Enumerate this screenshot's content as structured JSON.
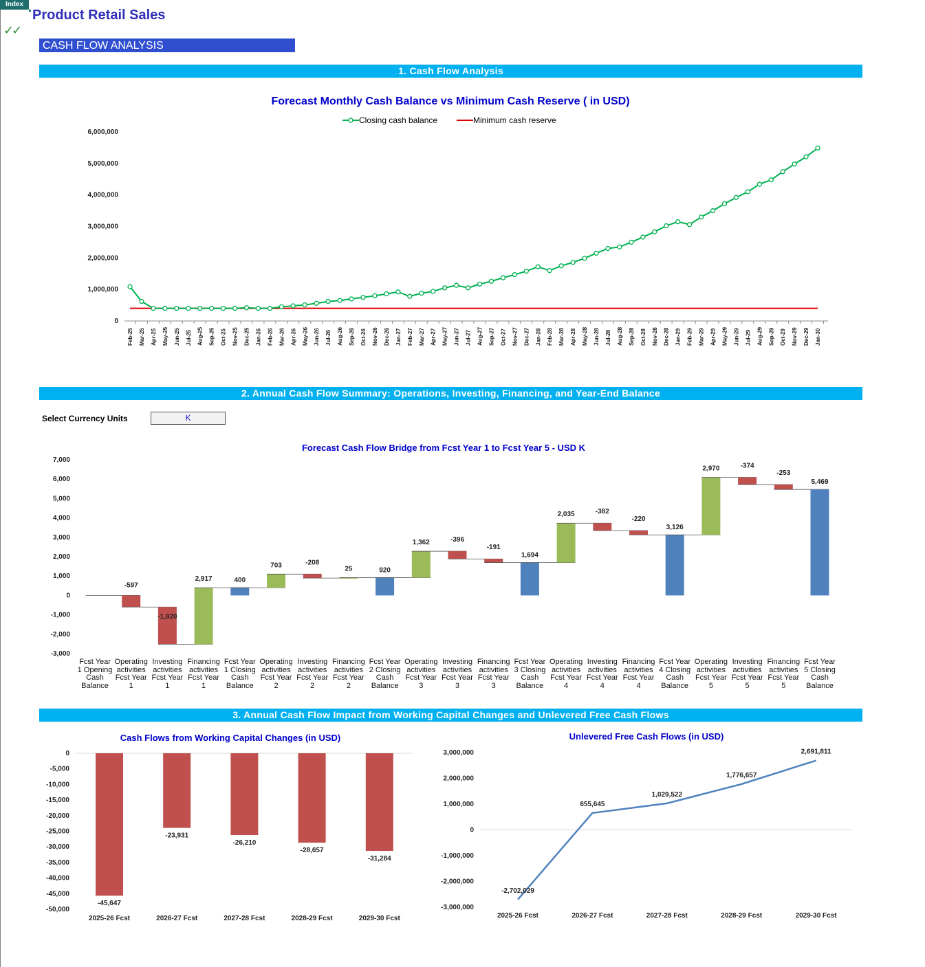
{
  "header": {
    "index_button": "Index",
    "checkmark_icon": "✓✓",
    "app_title": "Product Retail Sales",
    "section_label": "CASH FLOW ANALYSIS"
  },
  "bands": {
    "band1": "1. Cash Flow Analysis",
    "band2": "2. Annual Cash Flow Summary: Operations, Investing, Financing, and Year-End Balance",
    "band3": "3. Annual Cash Flow Impact from Working Capital Changes and Unlevered Free Cash Flows"
  },
  "controls": {
    "currency_label": "Select Currency Units",
    "currency_value": "K"
  },
  "colors": {
    "closing_line": "#00b050",
    "min_reserve": "#e00000",
    "bar_red": "#c0504d",
    "bar_green": "#9bbb59",
    "bar_blue": "#4f81bd",
    "fcf_line": "#4f81bd"
  },
  "chart_data": [
    {
      "type": "line",
      "title": "Forecast Monthly Cash Balance vs Minimum Cash Reserve ( in USD)",
      "legend": [
        "Closing cash balance",
        "Minimum cash reserve"
      ],
      "legend_position": "top",
      "ylim": [
        0,
        6000000
      ],
      "yticks": [
        "0",
        "1,000,000",
        "2,000,000",
        "3,000,000",
        "4,000,000",
        "5,000,000",
        "6,000,000"
      ],
      "x": [
        "Feb-25",
        "Mar-25",
        "Apr-25",
        "May-25",
        "Jun-25",
        "Jul-25",
        "Aug-25",
        "Sep-25",
        "Oct-25",
        "Nov-25",
        "Dec-25",
        "Jan-26",
        "Feb-26",
        "Mar-26",
        "Apr-26",
        "May-26",
        "Jun-26",
        "Jul-26",
        "Aug-26",
        "Sep-26",
        "Oct-26",
        "Nov-26",
        "Dec-26",
        "Jan-27",
        "Feb-27",
        "Mar-27",
        "Apr-27",
        "May-27",
        "Jun-27",
        "Jul-27",
        "Aug-27",
        "Sep-27",
        "Oct-27",
        "Nov-27",
        "Dec-27",
        "Jan-28",
        "Feb-28",
        "Mar-28",
        "Apr-28",
        "May-28",
        "Jun-28",
        "Jul-28",
        "Aug-28",
        "Sep-28",
        "Oct-28",
        "Nov-28",
        "Dec-28",
        "Jan-29",
        "Feb-29",
        "Mar-29",
        "Apr-29",
        "May-29",
        "Jun-29",
        "Jul-29",
        "Aug-29",
        "Sep-29",
        "Oct-29",
        "Nov-29",
        "Dec-29",
        "Jan-30"
      ],
      "series": [
        {
          "name": "Closing cash balance",
          "values": [
            1090000,
            620000,
            400000,
            400000,
            400000,
            400000,
            400000,
            400000,
            400000,
            400000,
            420000,
            400000,
            400000,
            450000,
            480000,
            510000,
            560000,
            620000,
            650000,
            700000,
            750000,
            800000,
            860000,
            920000,
            780000,
            880000,
            940000,
            1050000,
            1130000,
            1050000,
            1170000,
            1260000,
            1370000,
            1470000,
            1580000,
            1720000,
            1600000,
            1750000,
            1860000,
            1990000,
            2150000,
            2300000,
            2350000,
            2500000,
            2660000,
            2830000,
            3020000,
            3150000,
            3060000,
            3300000,
            3500000,
            3720000,
            3920000,
            4100000,
            4340000,
            4480000,
            4740000,
            4980000,
            5210000,
            5490000
          ]
        },
        {
          "name": "Minimum cash reserve",
          "values": [
            400000,
            400000,
            400000,
            400000,
            400000,
            400000,
            400000,
            400000,
            400000,
            400000,
            400000,
            400000,
            400000,
            400000,
            400000,
            400000,
            400000,
            400000,
            400000,
            400000,
            400000,
            400000,
            400000,
            400000,
            400000,
            400000,
            400000,
            400000,
            400000,
            400000,
            400000,
            400000,
            400000,
            400000,
            400000,
            400000,
            400000,
            400000,
            400000,
            400000,
            400000,
            400000,
            400000,
            400000,
            400000,
            400000,
            400000,
            400000,
            400000,
            400000,
            400000,
            400000,
            400000,
            400000,
            400000,
            400000,
            400000,
            400000,
            400000,
            400000
          ]
        }
      ]
    },
    {
      "type": "bar",
      "subtype": "waterfall",
      "title": "Forecast Cash Flow Bridge from Fcst Year 1 to Fcst Year 5 - USD K",
      "ylim": [
        -3000,
        7000
      ],
      "yticks": [
        "-3,000",
        "-2,000",
        "-1,000",
        "0",
        "1,000",
        "2,000",
        "3,000",
        "4,000",
        "5,000",
        "6,000",
        "7,000"
      ],
      "categories": [
        "Fcst Year 1 Opening Cash Balance",
        "Operating activities Fcst Year 1",
        "Investing activities Fcst Year 1",
        "Financing activities Fcst Year 1",
        "Fcst Year 1 Closing Cash Balance",
        "Operating activities Fcst Year 2",
        "Investing activities Fcst Year 2",
        "Financing activities Fcst Year 2",
        "Fcst Year 2 Closing Cash Balance",
        "Operating activities Fcst Year 3",
        "Investing activities Fcst Year 3",
        "Financing activities Fcst Year 3",
        "Fcst Year 3 Closing Cash Balance",
        "Operating activities Fcst Year 4",
        "Investing activities Fcst Year 4",
        "Financing activities Fcst Year 4",
        "Fcst Year 4 Closing Cash Balance",
        "Operating activities Fcst Year 5",
        "Investing activities Fcst Year 5",
        "Financing activities Fcst Year 5",
        "Fcst Year 5 Closing Cash Balance"
      ],
      "values": [
        0,
        -597,
        -1920,
        2917,
        400,
        703,
        -208,
        25,
        920,
        1362,
        -396,
        -191,
        1694,
        2035,
        -382,
        -220,
        3126,
        2970,
        -374,
        -253,
        5469
      ],
      "labels": [
        "",
        "-597",
        "-1,920",
        "2,917",
        "400",
        "703",
        "-208",
        "25",
        "920",
        "1,362",
        "-396",
        "-191",
        "1,694",
        "2,035",
        "-382",
        "-220",
        "3,126",
        "2,970",
        "-374",
        "-253",
        "5,469"
      ],
      "kinds": [
        "total",
        "delta",
        "delta",
        "delta",
        "total",
        "delta",
        "delta",
        "delta",
        "total",
        "delta",
        "delta",
        "delta",
        "total",
        "delta",
        "delta",
        "delta",
        "total",
        "delta",
        "delta",
        "delta",
        "total"
      ]
    },
    {
      "type": "bar",
      "title": "Cash Flows from Working Capital Changes (in USD)",
      "categories": [
        "2025-26 Fcst",
        "2026-27 Fcst",
        "2027-28 Fcst",
        "2028-29 Fcst",
        "2029-30 Fcst"
      ],
      "values": [
        -45647,
        -23931,
        -26210,
        -28657,
        -31284
      ],
      "labels": [
        "-45,647",
        "-23,931",
        "-26,210",
        "-28,657",
        "-31,284"
      ],
      "ylim": [
        -50000,
        0
      ],
      "yticks": [
        "0",
        "-5,000",
        "-10,000",
        "-15,000",
        "-20,000",
        "-25,000",
        "-30,000",
        "-35,000",
        "-40,000",
        "-45,000",
        "-50,000"
      ]
    },
    {
      "type": "line",
      "title": "Unlevered Free Cash Flows (in USD)",
      "categories": [
        "2025-26 Fcst",
        "2026-27 Fcst",
        "2027-28 Fcst",
        "2028-29 Fcst",
        "2029-30 Fcst"
      ],
      "values": [
        -2702029,
        655645,
        1029522,
        1776657,
        2691811
      ],
      "labels": [
        "-2,702,029",
        "655,645",
        "1,029,522",
        "1,776,657",
        "2,691,811"
      ],
      "ylim": [
        -3000000,
        3000000
      ],
      "yticks": [
        "-3,000,000",
        "-2,000,000",
        "-1,000,000",
        "0",
        "1,000,000",
        "2,000,000",
        "3,000,000"
      ]
    }
  ]
}
